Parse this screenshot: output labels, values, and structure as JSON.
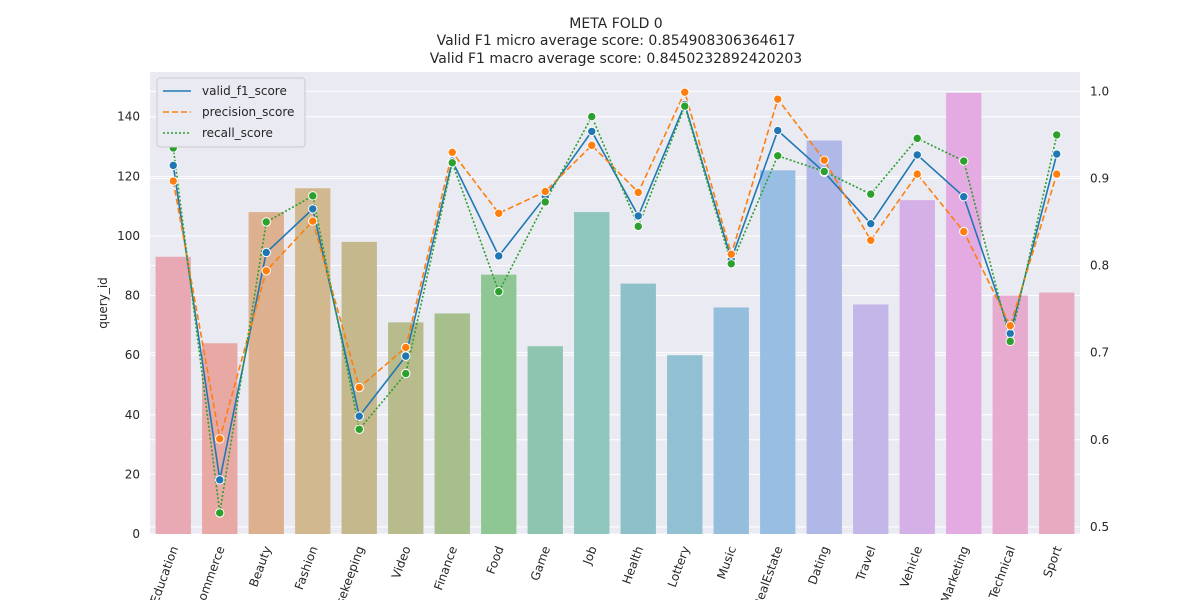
{
  "chart_data": {
    "type": "bar",
    "title": [
      "META FOLD 0",
      "Valid F1 micro average score: 0.854908306364617",
      "Valid F1 macro average score: 0.8450232892420203"
    ],
    "ylabel": "query_id",
    "categories": [
      "Education",
      "Ecommerce",
      "Beauty",
      "Fashion",
      "Housekeeping",
      "Video",
      "Finance",
      "Food",
      "Game",
      "Job",
      "Health",
      "Lottery",
      "Music",
      "RealEstate",
      "Dating",
      "Travel",
      "Vehicle",
      "Marketing",
      "Technical",
      "Sport"
    ],
    "bar_values": [
      93,
      64,
      108,
      116,
      98,
      71,
      74,
      87,
      63,
      108,
      84,
      60,
      76,
      122,
      132,
      77,
      112,
      148,
      80,
      81
    ],
    "bar_colors": [
      "#e8a9b4",
      "#e8a8a4",
      "#ddb090",
      "#d1b88e",
      "#c5b88c",
      "#b8bb8c",
      "#a7bf8c",
      "#8ec794",
      "#8dc5b0",
      "#8ec5bc",
      "#8dc0c8",
      "#90c0d2",
      "#95bedd",
      "#98bfe3",
      "#b0b8e8",
      "#c3b6e8",
      "#d5b0e6",
      "#e4abe2",
      "#e7abd0",
      "#e8aac0"
    ],
    "ylim": [
      0,
      155
    ],
    "yticks": [
      0,
      20,
      40,
      60,
      80,
      100,
      120,
      140
    ],
    "y2lim": [
      0.4918,
      1.0222
    ],
    "y2ticks": [
      "0.5",
      "0.6",
      "0.7",
      "0.8",
      "0.9",
      "1.0"
    ],
    "y2tick_values": [
      0.5,
      0.6,
      0.7,
      0.8,
      0.9,
      1.0
    ],
    "series": [
      {
        "name": "valid_f1_score",
        "style": "solid",
        "color": "#1f77b4",
        "values": [
          0.915,
          0.554,
          0.815,
          0.865,
          0.627,
          0.696,
          0.92,
          0.811,
          0.879,
          0.954,
          0.857,
          0.985,
          0.807,
          0.955,
          0.907,
          0.848,
          0.927,
          0.879,
          0.722,
          0.928
        ]
      },
      {
        "name": "precision_score",
        "style": "dashed",
        "color": "#ff7f0e",
        "values": [
          0.897,
          0.601,
          0.794,
          0.851,
          0.66,
          0.706,
          0.93,
          0.86,
          0.885,
          0.938,
          0.884,
          0.999,
          0.813,
          0.991,
          0.921,
          0.829,
          0.905,
          0.839,
          0.731,
          0.905
        ]
      },
      {
        "name": "recall_score",
        "style": "dotted",
        "color": "#2ca02c",
        "values": [
          0.935,
          0.516,
          0.85,
          0.88,
          0.612,
          0.676,
          0.918,
          0.77,
          0.873,
          0.971,
          0.845,
          0.983,
          0.802,
          0.926,
          0.908,
          0.882,
          0.946,
          0.92,
          0.713,
          0.95
        ]
      }
    ],
    "legend_position": "top-left",
    "grid": true
  }
}
